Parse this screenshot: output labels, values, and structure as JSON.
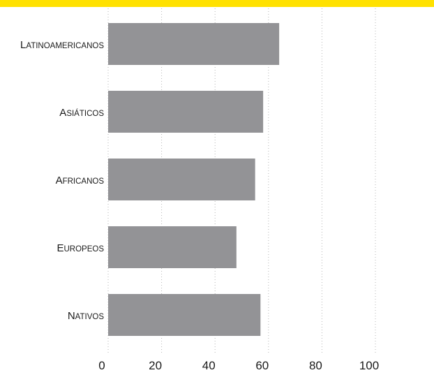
{
  "chart_data": {
    "type": "bar",
    "orientation": "horizontal",
    "categories": [
      "Latinoamericanos",
      "Asiáticos",
      "Africanos",
      "Europeos",
      "Nativos"
    ],
    "values": [
      64,
      58,
      55,
      48,
      57
    ],
    "xlim": [
      0,
      100
    ],
    "xticks": [
      "0",
      "20",
      "40",
      "60",
      "80",
      "100"
    ],
    "grid": true,
    "colors": {
      "bar": "#939396",
      "top_band": "#ffe100",
      "grid": "#b5b5b5"
    }
  }
}
